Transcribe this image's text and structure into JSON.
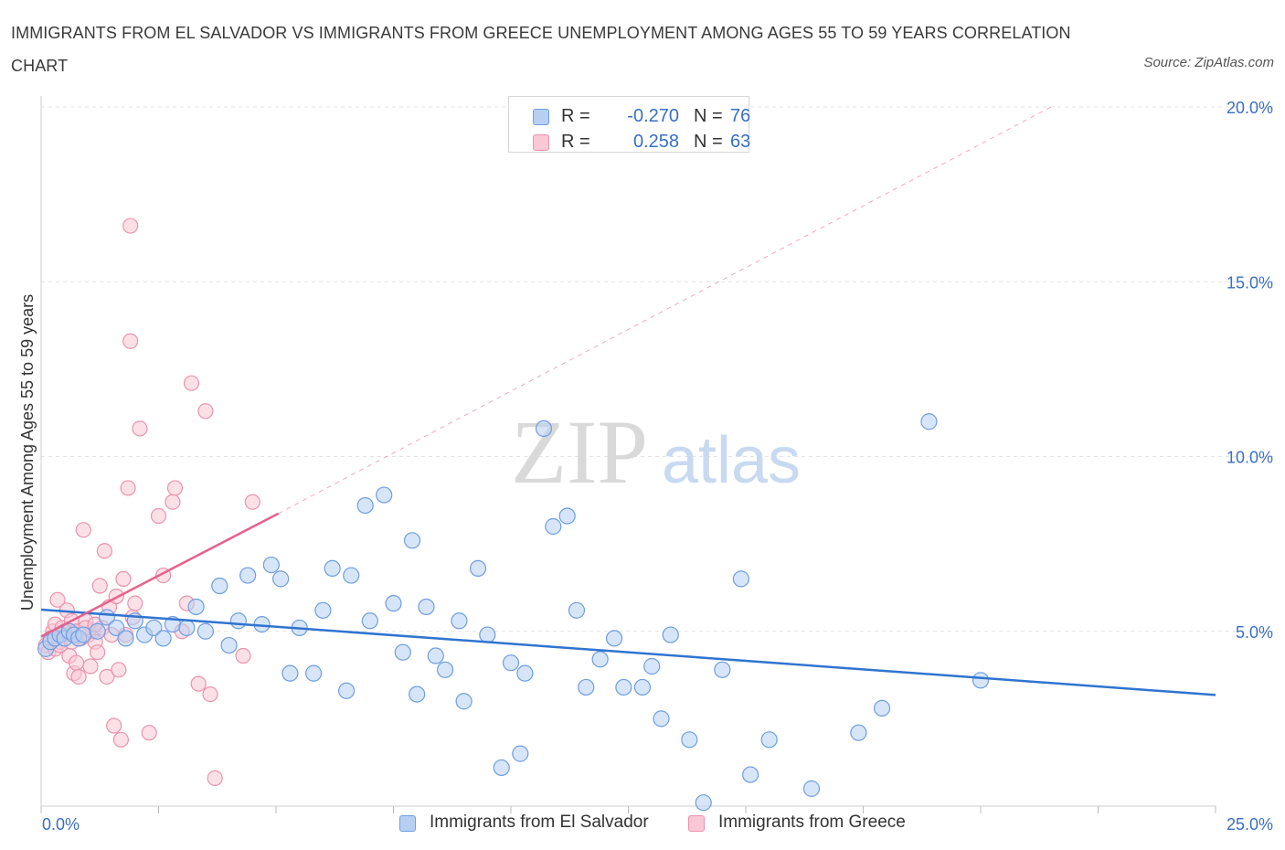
{
  "title": "IMMIGRANTS FROM EL SALVADOR VS IMMIGRANTS FROM GREECE UNEMPLOYMENT AMONG AGES 55 TO 59 YEARS CORRELATION CHART",
  "source": "Source: ZipAtlas.com",
  "watermark": {
    "zip": "ZIP",
    "atlas": "atlas"
  },
  "colors": {
    "blue_fill": "#b7cff3",
    "blue_stroke": "#6f9ee0",
    "blue_line": "#2f74d0",
    "pink_fill": "#f9c7d5",
    "pink_stroke": "#ec92ad",
    "pink_line": "#e8618c",
    "axis_label": "#3a6fc4",
    "grid": "#e3e3e3"
  },
  "legend_top": [
    {
      "swatch": "blue",
      "r_label": "R =",
      "r_value": "-0.270",
      "n_label": "N =",
      "n_value": "76"
    },
    {
      "swatch": "pink",
      "r_label": "R =",
      "r_value": "0.258",
      "n_label": "N =",
      "n_value": "63"
    }
  ],
  "legend_bottom": [
    {
      "swatch": "blue",
      "label": "Immigrants from El Salvador"
    },
    {
      "swatch": "pink",
      "label": "Immigrants from Greece"
    }
  ],
  "chart_data": {
    "type": "scatter",
    "title": "IMMIGRANTS FROM EL SALVADOR VS IMMIGRANTS FROM GREECE UNEMPLOYMENT AMONG AGES 55 TO 59 YEARS CORRELATION CHART",
    "xlabel": "",
    "ylabel": "Unemployment Among Ages 55 to 59 years",
    "xlim": [
      0,
      25
    ],
    "ylim": [
      0,
      20
    ],
    "x_tick_labels": [
      "0.0%",
      "25.0%"
    ],
    "y_ticks": [
      5,
      10,
      15,
      20
    ],
    "y_tick_labels": [
      "5.0%",
      "10.0%",
      "15.0%",
      "20.0%"
    ],
    "grid": true,
    "series": [
      {
        "name": "Immigrants from El Salvador",
        "color": "blue",
        "R": -0.27,
        "N": 76,
        "trend": {
          "x": [
            0,
            25
          ],
          "y": [
            5.62,
            3.18
          ],
          "style": "solid"
        },
        "points": [
          [
            0.1,
            4.5
          ],
          [
            0.2,
            4.7
          ],
          [
            0.3,
            4.8
          ],
          [
            0.4,
            4.9
          ],
          [
            0.5,
            4.8
          ],
          [
            0.6,
            5.0
          ],
          [
            0.7,
            4.9
          ],
          [
            0.8,
            4.8
          ],
          [
            0.9,
            4.9
          ],
          [
            1.2,
            5.0
          ],
          [
            1.4,
            5.4
          ],
          [
            1.6,
            5.1
          ],
          [
            1.8,
            4.8
          ],
          [
            2.0,
            5.3
          ],
          [
            2.2,
            4.9
          ],
          [
            2.4,
            5.1
          ],
          [
            2.6,
            4.8
          ],
          [
            2.8,
            5.2
          ],
          [
            3.1,
            5.1
          ],
          [
            3.3,
            5.7
          ],
          [
            3.5,
            5.0
          ],
          [
            3.8,
            6.3
          ],
          [
            4.0,
            4.6
          ],
          [
            4.2,
            5.3
          ],
          [
            4.4,
            6.6
          ],
          [
            4.7,
            5.2
          ],
          [
            4.9,
            6.9
          ],
          [
            5.1,
            6.5
          ],
          [
            5.3,
            3.8
          ],
          [
            5.5,
            5.1
          ],
          [
            5.8,
            3.8
          ],
          [
            6.0,
            5.6
          ],
          [
            6.2,
            6.8
          ],
          [
            6.5,
            3.3
          ],
          [
            6.6,
            6.6
          ],
          [
            6.9,
            8.6
          ],
          [
            7.0,
            5.3
          ],
          [
            7.3,
            8.9
          ],
          [
            7.5,
            5.8
          ],
          [
            7.7,
            4.4
          ],
          [
            7.9,
            7.6
          ],
          [
            8.0,
            3.2
          ],
          [
            8.2,
            5.7
          ],
          [
            8.4,
            4.3
          ],
          [
            8.6,
            3.9
          ],
          [
            8.9,
            5.3
          ],
          [
            9.0,
            3.0
          ],
          [
            9.3,
            6.8
          ],
          [
            9.5,
            4.9
          ],
          [
            9.8,
            1.1
          ],
          [
            10.0,
            4.1
          ],
          [
            10.2,
            1.5
          ],
          [
            10.3,
            3.8
          ],
          [
            10.7,
            10.8
          ],
          [
            10.9,
            8.0
          ],
          [
            11.2,
            8.3
          ],
          [
            11.4,
            5.6
          ],
          [
            11.6,
            3.4
          ],
          [
            11.9,
            4.2
          ],
          [
            12.2,
            4.8
          ],
          [
            12.4,
            3.4
          ],
          [
            12.8,
            3.4
          ],
          [
            13.0,
            4.0
          ],
          [
            13.2,
            2.5
          ],
          [
            13.4,
            4.9
          ],
          [
            13.8,
            1.9
          ],
          [
            14.1,
            0.1
          ],
          [
            14.5,
            3.9
          ],
          [
            14.9,
            6.5
          ],
          [
            15.1,
            0.9
          ],
          [
            15.5,
            1.9
          ],
          [
            16.4,
            0.5
          ],
          [
            17.4,
            2.1
          ],
          [
            17.9,
            2.8
          ],
          [
            18.9,
            11.0
          ],
          [
            20.0,
            3.6
          ]
        ]
      },
      {
        "name": "Immigrants from Greece",
        "color": "pink",
        "R": 0.258,
        "N": 63,
        "trend": {
          "x": [
            0,
            5.05
          ],
          "y": [
            4.85,
            8.37
          ],
          "style": "solid"
        },
        "trend_extension": {
          "x": [
            5.05,
            21.5
          ],
          "y": [
            8.37,
            20.0
          ],
          "style": "dashed"
        },
        "points": [
          [
            0.1,
            4.6
          ],
          [
            0.15,
            4.4
          ],
          [
            0.2,
            4.8
          ],
          [
            0.25,
            5.0
          ],
          [
            0.3,
            5.2
          ],
          [
            0.3,
            4.5
          ],
          [
            0.35,
            5.9
          ],
          [
            0.4,
            4.7
          ],
          [
            0.45,
            5.1
          ],
          [
            0.5,
            4.9
          ],
          [
            0.55,
            5.6
          ],
          [
            0.6,
            4.3
          ],
          [
            0.65,
            5.3
          ],
          [
            0.7,
            3.8
          ],
          [
            0.75,
            4.1
          ],
          [
            0.75,
            5.0
          ],
          [
            0.8,
            3.7
          ],
          [
            0.85,
            4.8
          ],
          [
            0.9,
            7.9
          ],
          [
            0.95,
            5.3
          ],
          [
            1.0,
            4.9
          ],
          [
            1.05,
            4.0
          ],
          [
            1.1,
            5.0
          ],
          [
            1.15,
            4.7
          ],
          [
            1.2,
            4.4
          ],
          [
            1.25,
            6.3
          ],
          [
            1.3,
            5.1
          ],
          [
            1.35,
            7.3
          ],
          [
            1.4,
            3.7
          ],
          [
            1.45,
            5.7
          ],
          [
            1.5,
            4.9
          ],
          [
            1.55,
            2.3
          ],
          [
            1.6,
            6.0
          ],
          [
            1.65,
            3.9
          ],
          [
            1.7,
            1.9
          ],
          [
            1.75,
            6.5
          ],
          [
            1.8,
            4.9
          ],
          [
            1.85,
            9.1
          ],
          [
            1.9,
            13.3
          ],
          [
            1.95,
            5.4
          ],
          [
            2.0,
            5.8
          ],
          [
            2.1,
            10.8
          ],
          [
            2.3,
            2.1
          ],
          [
            2.5,
            8.3
          ],
          [
            2.6,
            6.6
          ],
          [
            2.8,
            8.7
          ],
          [
            2.85,
            9.1
          ],
          [
            3.0,
            5.0
          ],
          [
            3.1,
            5.8
          ],
          [
            3.2,
            12.1
          ],
          [
            3.35,
            3.5
          ],
          [
            3.5,
            11.3
          ],
          [
            3.6,
            3.2
          ],
          [
            3.7,
            0.8
          ],
          [
            4.3,
            4.3
          ],
          [
            4.5,
            8.7
          ],
          [
            1.9,
            16.6
          ],
          [
            0.2,
            4.8
          ],
          [
            0.4,
            4.6
          ],
          [
            0.5,
            5.0
          ],
          [
            0.65,
            4.7
          ],
          [
            0.95,
            5.1
          ],
          [
            1.15,
            5.2
          ]
        ]
      }
    ]
  }
}
